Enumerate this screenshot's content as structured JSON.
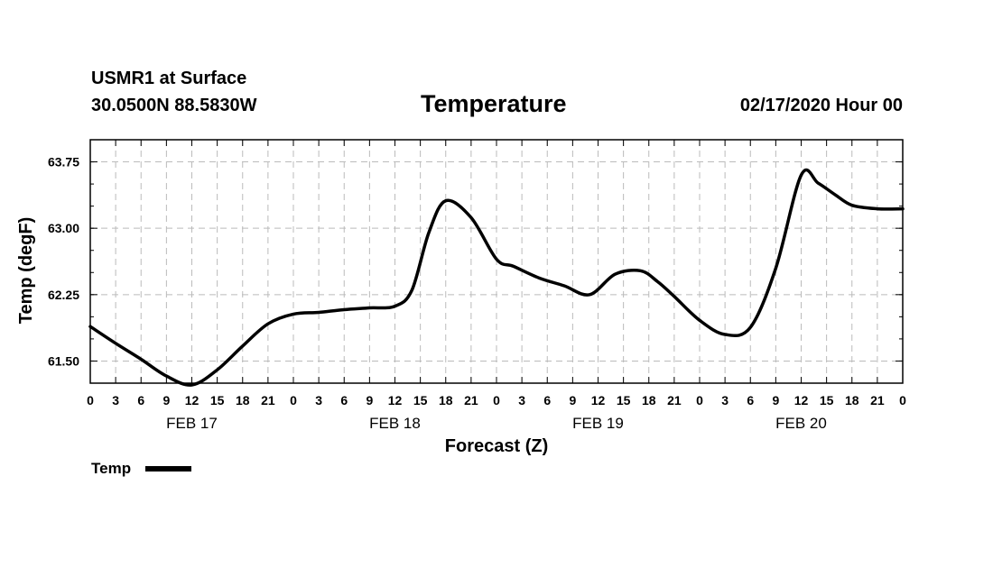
{
  "header": {
    "station": "USMR1 at Surface",
    "coords": "30.0500N 88.5830W",
    "title": "Temperature",
    "run_time": "02/17/2020 Hour 00"
  },
  "chart_data": {
    "type": "line",
    "title": "Temperature",
    "xlabel": "Forecast (Z)",
    "ylabel": "Temp (degF)",
    "ylim": [
      61.25,
      64.0
    ],
    "y_ticks": [
      61.5,
      62.25,
      63.0,
      63.75
    ],
    "y_tick_labels": [
      "61.50",
      "62.25",
      "63.00",
      "63.75"
    ],
    "xlim_hours": [
      0,
      96
    ],
    "x_tick_labels": [
      "0",
      "3",
      "6",
      "9",
      "12",
      "15",
      "18",
      "21",
      "0",
      "3",
      "6",
      "9",
      "12",
      "15",
      "18",
      "21",
      "0",
      "3",
      "6",
      "9",
      "12",
      "15",
      "18",
      "21",
      "0",
      "3",
      "6",
      "9",
      "12",
      "15",
      "18",
      "21",
      "0"
    ],
    "date_labels": [
      {
        "label": "FEB 17",
        "hour": 12
      },
      {
        "label": "FEB 18",
        "hour": 36
      },
      {
        "label": "FEB 19",
        "hour": 60
      },
      {
        "label": "FEB 20",
        "hour": 84
      }
    ],
    "grid": true,
    "legend_position": "bottom-left",
    "series": [
      {
        "name": "Temp",
        "color": "#000000",
        "x": [
          0,
          3,
          6,
          9,
          12,
          15,
          18,
          21,
          24,
          27,
          30,
          33,
          36,
          38,
          40,
          42,
          45,
          48,
          50,
          53,
          56,
          59,
          62,
          65,
          67,
          69,
          72,
          75,
          78,
          81,
          84,
          86,
          88,
          90,
          93,
          96
        ],
        "y": [
          61.89,
          61.7,
          61.52,
          61.33,
          61.23,
          61.4,
          61.67,
          61.92,
          62.03,
          62.05,
          62.08,
          62.1,
          62.12,
          62.3,
          62.95,
          63.31,
          63.12,
          62.65,
          62.57,
          62.44,
          62.35,
          62.25,
          62.48,
          62.52,
          62.4,
          62.23,
          61.96,
          61.8,
          61.88,
          62.55,
          63.6,
          63.51,
          63.38,
          63.26,
          63.22,
          63.22
        ]
      }
    ]
  }
}
